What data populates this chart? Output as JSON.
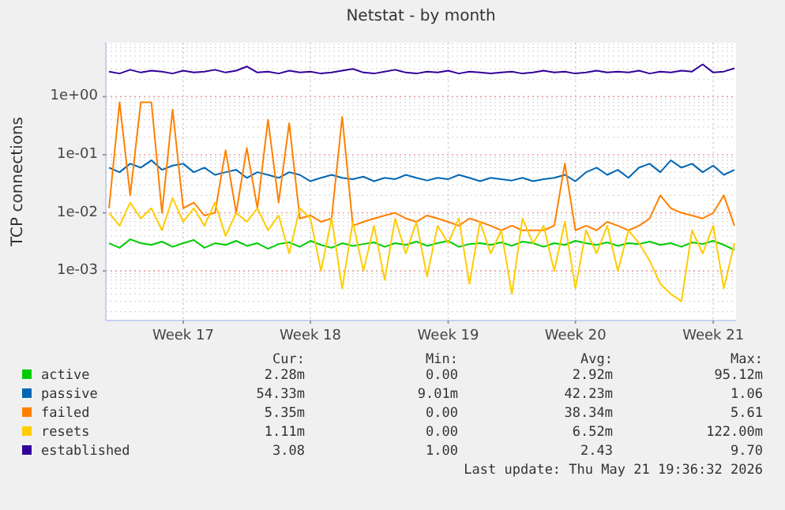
{
  "chart_data": {
    "type": "line",
    "title": "Netstat - by month",
    "ylabel": "TCP connections",
    "log": "y",
    "grid": true,
    "legend": "bottom",
    "categories": [
      null,
      null,
      null,
      null,
      null,
      null,
      null,
      "Week 17",
      null,
      null,
      null,
      null,
      null,
      null,
      null,
      null,
      null,
      null,
      null,
      "Week 18",
      null,
      null,
      null,
      null,
      null,
      null,
      null,
      null,
      null,
      null,
      null,
      null,
      "Week 19",
      null,
      null,
      null,
      null,
      null,
      null,
      null,
      null,
      null,
      null,
      null,
      "Week 20",
      null,
      null,
      null,
      null,
      null,
      null,
      null,
      null,
      null,
      null,
      null,
      null,
      "Week 21",
      null,
      null
    ],
    "ylim": [
      0.00014,
      8.5
    ],
    "yticks": [
      {
        "value": 0.001,
        "label": "1e-03"
      },
      {
        "value": 0.01,
        "label": "1e-02"
      },
      {
        "value": 0.1,
        "label": "1e-01"
      },
      {
        "value": 1,
        "label": "1e+00"
      }
    ],
    "series": [
      {
        "name": "active",
        "color": "#00cc00",
        "values": [
          0.003,
          0.0025,
          0.0035,
          0.003,
          0.0028,
          0.0032,
          0.0026,
          0.003,
          0.0034,
          0.0025,
          0.003,
          0.0028,
          0.0033,
          0.0027,
          0.003,
          0.0024,
          0.0029,
          0.0031,
          0.0026,
          0.0033,
          0.0028,
          0.0025,
          0.003,
          0.0027,
          0.0029,
          0.0031,
          0.0026,
          0.003,
          0.0028,
          0.0032,
          0.0027,
          0.003,
          0.0033,
          0.0026,
          0.0029,
          0.003,
          0.0028,
          0.0031,
          0.0027,
          0.0032,
          0.003,
          0.0026,
          0.003,
          0.0028,
          0.0033,
          0.003,
          0.0028,
          0.0031,
          0.0027,
          0.003,
          0.0029,
          0.0032,
          0.0028,
          0.003,
          0.0026,
          0.0031,
          0.0029,
          0.0033,
          0.0028,
          0.0023
        ]
      },
      {
        "name": "passive",
        "color": "#0066b3",
        "values": [
          0.06,
          0.05,
          0.07,
          0.06,
          0.08,
          0.055,
          0.065,
          0.07,
          0.05,
          0.06,
          0.045,
          0.05,
          0.055,
          0.04,
          0.05,
          0.045,
          0.04,
          0.05,
          0.045,
          0.035,
          0.04,
          0.045,
          0.04,
          0.038,
          0.042,
          0.035,
          0.04,
          0.038,
          0.045,
          0.04,
          0.036,
          0.04,
          0.038,
          0.045,
          0.04,
          0.035,
          0.04,
          0.038,
          0.036,
          0.04,
          0.035,
          0.038,
          0.04,
          0.045,
          0.035,
          0.05,
          0.06,
          0.045,
          0.055,
          0.04,
          0.06,
          0.07,
          0.05,
          0.08,
          0.06,
          0.07,
          0.05,
          0.065,
          0.045,
          0.055
        ]
      },
      {
        "name": "failed",
        "color": "#ff8000",
        "values": [
          0.012,
          0.8,
          0.02,
          0.8,
          0.8,
          0.01,
          0.6,
          0.012,
          0.015,
          0.009,
          0.01,
          0.12,
          0.01,
          0.13,
          0.012,
          0.4,
          0.015,
          0.35,
          0.008,
          0.009,
          0.007,
          0.008,
          0.45,
          0.006,
          0.007,
          0.008,
          0.009,
          0.01,
          0.008,
          0.007,
          0.009,
          0.008,
          0.007,
          0.006,
          0.008,
          0.007,
          0.006,
          0.005,
          0.006,
          0.005,
          0.005,
          0.005,
          0.006,
          0.07,
          0.005,
          0.006,
          0.005,
          0.007,
          0.006,
          0.005,
          0.006,
          0.008,
          0.02,
          0.012,
          0.01,
          0.009,
          0.008,
          0.01,
          0.02,
          0.006
        ]
      },
      {
        "name": "resets",
        "color": "#ffcc00",
        "values": [
          0.01,
          0.006,
          0.015,
          0.008,
          0.012,
          0.005,
          0.018,
          0.007,
          0.012,
          0.006,
          0.015,
          0.004,
          0.01,
          0.007,
          0.012,
          0.005,
          0.009,
          0.002,
          0.012,
          0.008,
          0.001,
          0.008,
          0.0005,
          0.007,
          0.001,
          0.006,
          0.0007,
          0.008,
          0.002,
          0.007,
          0.0008,
          0.006,
          0.003,
          0.008,
          0.0006,
          0.007,
          0.002,
          0.005,
          0.0004,
          0.008,
          0.003,
          0.006,
          0.001,
          0.007,
          0.0005,
          0.005,
          0.002,
          0.006,
          0.001,
          0.005,
          0.003,
          0.0015,
          0.0006,
          0.0004,
          0.0003,
          0.005,
          0.002,
          0.006,
          0.0005,
          0.003
        ]
      },
      {
        "name": "established",
        "color": "#330099",
        "values": [
          2.7,
          2.5,
          2.9,
          2.6,
          2.8,
          2.7,
          2.5,
          2.8,
          2.6,
          2.7,
          2.9,
          2.6,
          2.8,
          3.3,
          2.6,
          2.7,
          2.5,
          2.8,
          2.6,
          2.7,
          2.5,
          2.6,
          2.8,
          3,
          2.6,
          2.5,
          2.7,
          2.9,
          2.6,
          2.5,
          2.7,
          2.6,
          2.8,
          2.5,
          2.7,
          2.6,
          2.5,
          2.6,
          2.7,
          2.5,
          2.6,
          2.8,
          2.6,
          2.7,
          2.5,
          2.6,
          2.8,
          2.6,
          2.7,
          2.6,
          2.8,
          2.5,
          2.7,
          2.6,
          2.8,
          2.7,
          3.6,
          2.6,
          2.7,
          3.08
        ]
      }
    ],
    "annotations": [
      "Cur:",
      "Min:",
      "Avg:",
      "Max:",
      "2.28m",
      "0.00",
      "2.92m",
      "95.12m",
      "54.33m",
      "9.01m",
      "42.23m",
      "1.06",
      "5.35m",
      "0.00",
      "38.34m",
      "5.61",
      "1.11m",
      "0.00",
      "6.52m",
      "122.00m",
      "3.08",
      "1.00",
      "2.43",
      "9.70",
      "Last update: Thu May 21 19:36:32 2026"
    ]
  }
}
